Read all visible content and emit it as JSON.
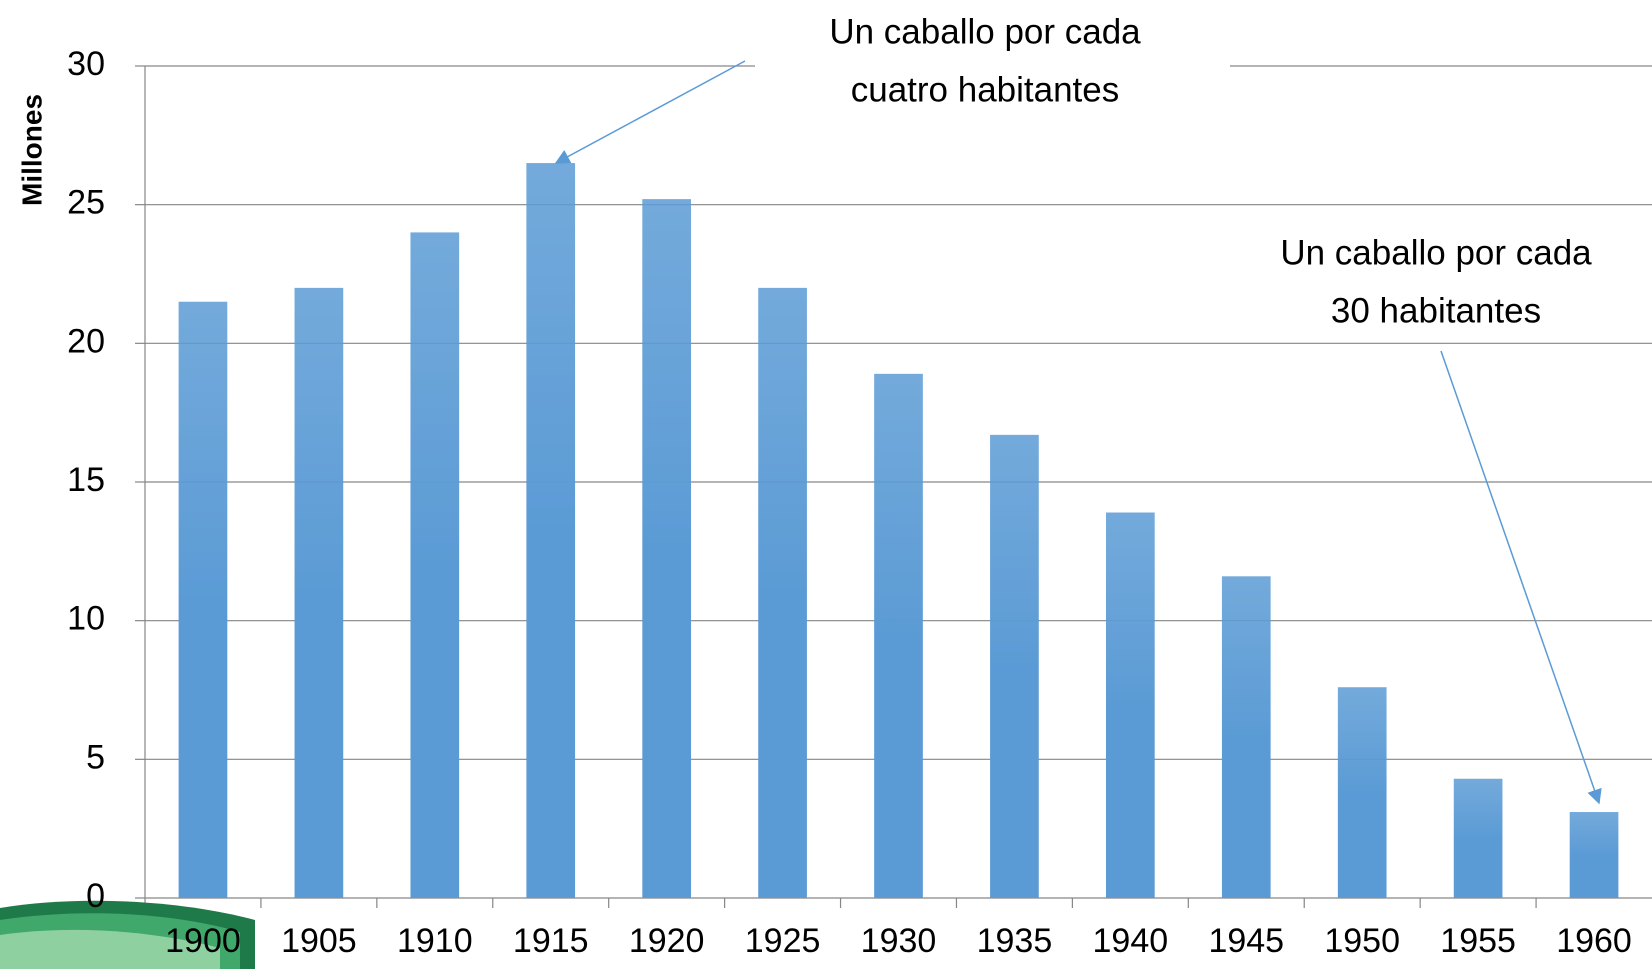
{
  "chart_data": {
    "type": "bar",
    "y_label": "Millones",
    "categories": [
      "1900",
      "1905",
      "1910",
      "1915",
      "1920",
      "1925",
      "1930",
      "1935",
      "1940",
      "1945",
      "1950",
      "1955",
      "1960"
    ],
    "values": [
      21.5,
      22,
      24,
      26.5,
      25.2,
      22,
      18.9,
      16.7,
      13.9,
      11.6,
      7.6,
      4.3,
      3.1
    ],
    "color": "#5b9bd5",
    "ylim": [
      0,
      30
    ],
    "yticks": [
      0,
      5,
      10,
      15,
      20,
      25,
      30
    ],
    "grid": true,
    "annotations": [
      {
        "lines": [
          "Un caballo por cada",
          "cuatro habitantes"
        ]
      },
      {
        "lines": [
          "Un caballo por cada",
          "30 habitantes"
        ]
      }
    ]
  }
}
